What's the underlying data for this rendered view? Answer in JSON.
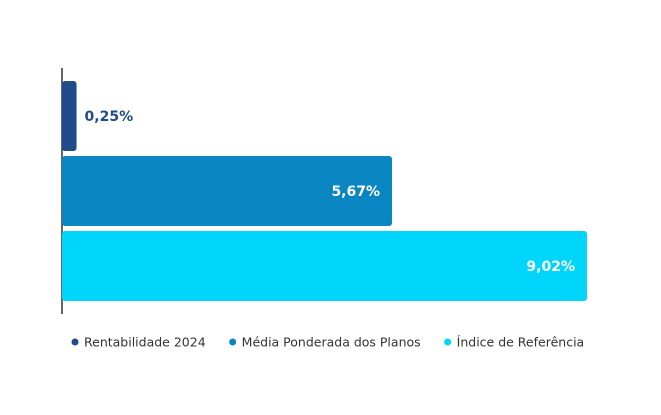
{
  "chart_data": {
    "type": "bar",
    "orientation": "horizontal",
    "series": [
      {
        "name": "Rentabilidade 2024",
        "color": "#1f4b8b",
        "values": [
          0.25
        ],
        "value_labels": [
          "0,25%"
        ]
      },
      {
        "name": "Média Ponderada dos Planos",
        "color": "#0a87c3",
        "values": [
          5.67
        ],
        "value_labels": [
          "5,67%"
        ]
      },
      {
        "name": "Índice de Referência",
        "color": "#00d5fb",
        "values": [
          9.02
        ],
        "value_labels": [
          "9,02%"
        ]
      }
    ],
    "legend": "bottom"
  }
}
